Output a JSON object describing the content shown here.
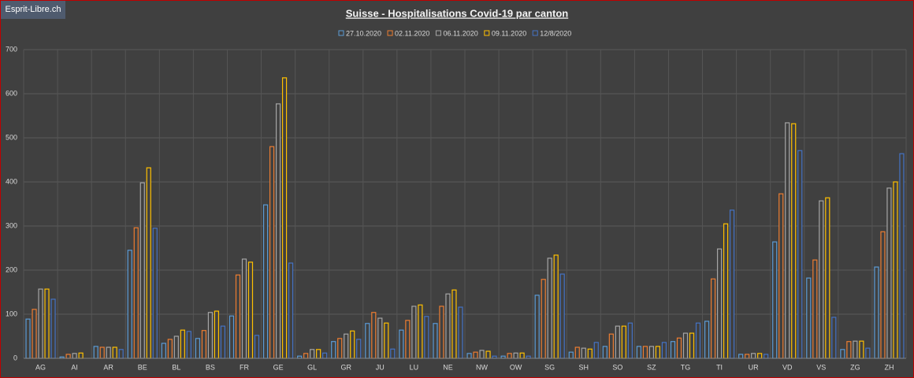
{
  "watermark": "Esprit-Libre.ch",
  "chart_data": {
    "type": "bar",
    "title": "Suisse - Hospitalisations Covid-19 par canton",
    "categories": [
      "AG",
      "AI",
      "AR",
      "BE",
      "BL",
      "BS",
      "FR",
      "GE",
      "GL",
      "GR",
      "JU",
      "LU",
      "NE",
      "NW",
      "OW",
      "SG",
      "SH",
      "SO",
      "SZ",
      "TG",
      "TI",
      "UR",
      "VD",
      "VS",
      "ZG",
      "ZH"
    ],
    "series": [
      {
        "name": "27.10.2020",
        "color": "#5b9bd5",
        "values": [
          89,
          3,
          27,
          245,
          34,
          45,
          96,
          348,
          5,
          38,
          79,
          64,
          79,
          11,
          5,
          143,
          14,
          27,
          27,
          38,
          84,
          9,
          264,
          182,
          20,
          207
        ]
      },
      {
        "name": "02.11.2020",
        "color": "#ed7d31",
        "values": [
          111,
          9,
          25,
          296,
          43,
          63,
          189,
          480,
          11,
          45,
          104,
          86,
          118,
          14,
          11,
          179,
          25,
          55,
          27,
          46,
          180,
          9,
          373,
          223,
          38,
          287
        ]
      },
      {
        "name": "06.11.2020",
        "color": "#a5a5a5",
        "values": [
          157,
          11,
          25,
          398,
          50,
          104,
          225,
          577,
          20,
          55,
          91,
          118,
          146,
          18,
          12,
          227,
          23,
          73,
          27,
          57,
          248,
          11,
          534,
          357,
          39,
          386
        ]
      },
      {
        "name": "09.11.2020",
        "color": "#ffc000",
        "values": [
          157,
          12,
          25,
          432,
          64,
          107,
          218,
          636,
          20,
          62,
          80,
          121,
          155,
          16,
          12,
          234,
          21,
          73,
          27,
          57,
          305,
          11,
          532,
          364,
          39,
          400
        ]
      },
      {
        "name": "12/8/2020",
        "color": "#4472c4",
        "values": [
          134,
          0,
          20,
          295,
          61,
          73,
          52,
          216,
          12,
          43,
          21,
          95,
          116,
          5,
          5,
          191,
          36,
          80,
          36,
          80,
          336,
          9,
          471,
          93,
          23,
          464
        ]
      }
    ],
    "ylim": [
      0,
      700
    ],
    "yticks": [
      0,
      100,
      200,
      300,
      400,
      500,
      600,
      700
    ],
    "grid": true
  }
}
